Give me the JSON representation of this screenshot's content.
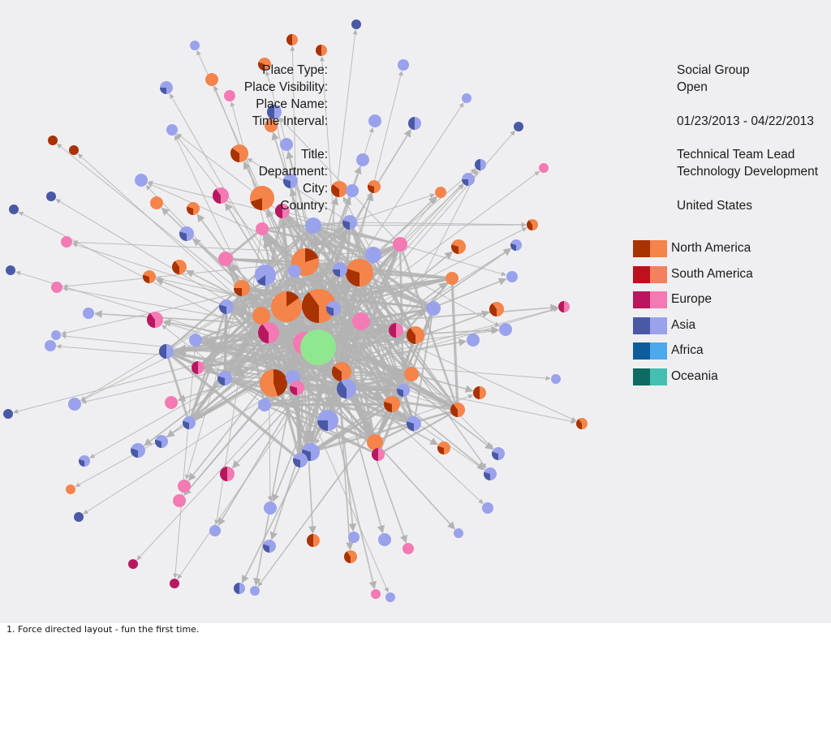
{
  "place_info": [
    {
      "label": "Place Type:",
      "value": "Social Group"
    },
    {
      "label": "Place Visibility:",
      "value": "Open"
    },
    {
      "label": "Place Name:",
      "value": ""
    },
    {
      "label": "Time Interval:",
      "value": "01/23/2013 - 04/22/2013"
    }
  ],
  "person_info": [
    {
      "label": "Title:",
      "value": "Technical Team Lead"
    },
    {
      "label": "Department:",
      "value": "Technology Development"
    },
    {
      "label": "City:",
      "value": ""
    },
    {
      "label": "Country:",
      "value": "United States"
    }
  ],
  "legend": [
    {
      "label": "North America",
      "dark": "#a83200",
      "light": "#f4844a"
    },
    {
      "label": "South America",
      "dark": "#c0101e",
      "light": "#f4805e"
    },
    {
      "label": "Europe",
      "dark": "#b8175f",
      "light": "#f47ab4"
    },
    {
      "label": "Asia",
      "dark": "#4a59a6",
      "light": "#9aa2ec"
    },
    {
      "label": "Africa",
      "dark": "#0d5d9c",
      "light": "#4da9ee"
    },
    {
      "label": "Oceania",
      "dark": "#0d6b63",
      "light": "#45bfb1"
    }
  ],
  "center_color": "#8fe88f",
  "edge_color": "#b3b3b3",
  "caption": "1. Force directed layout - fun the first time."
}
